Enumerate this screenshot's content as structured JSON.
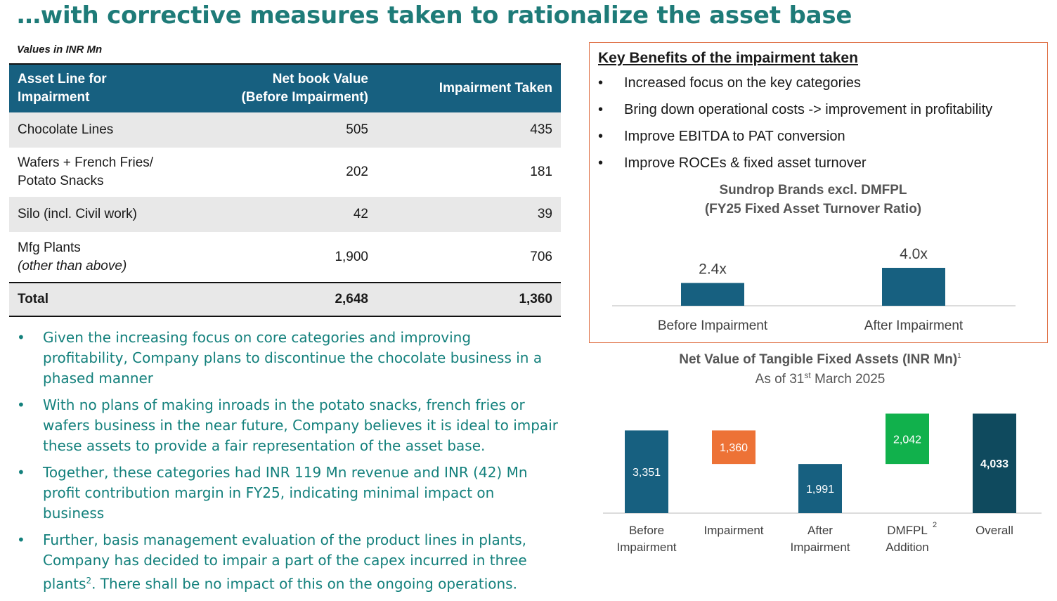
{
  "title": "…with corrective measures taken to rationalize the asset base",
  "units_note": "Values in INR Mn",
  "table": {
    "headers": {
      "col1_line1": "Asset Line for",
      "col1_line2": "Impairment",
      "col2_line1": "Net book Value",
      "col2_line2": "(Before Impairment)",
      "col3": "Impairment Taken"
    },
    "rows": [
      {
        "label1": "Chocolate Lines",
        "label2": "",
        "nbv": "505",
        "impairment": "435"
      },
      {
        "label1": "Wafers + French Fries/",
        "label2": "Potato Snacks",
        "nbv": "202",
        "impairment": "181"
      },
      {
        "label1": "Silo (incl. Civil work)",
        "label2": "",
        "nbv": "42",
        "impairment": "39"
      },
      {
        "label1": "Mfg Plants",
        "label2": "(other than above)",
        "nbv": "1,900",
        "impairment": "706"
      }
    ],
    "total": {
      "label": "Total",
      "nbv": "2,648",
      "impairment": "1,360"
    }
  },
  "notes": [
    "Given the increasing focus on core categories and improving profitability, Company plans to discontinue the chocolate business in a phased manner",
    "With no plans of making inroads in the potato snacks, french fries or wafers business in the near future, Company believes it is ideal to impair these assets to provide a fair representation of the asset base.",
    "Together, these categories had INR 119 Mn revenue and INR (42) Mn profit contribution margin in FY25, indicating minimal impact on business",
    "Further, basis management evaluation of the product lines in plants, Company has decided to impair a part of the capex incurred in three plants"
  ],
  "note4_sup": "2",
  "note4_tail": ". There shall be no impact of this on the ongoing operations.",
  "bullet": "•",
  "benefits": {
    "title": "Key Benefits of the impairment taken",
    "items": [
      "Increased focus on the key categories",
      "Bring down operational costs -> improvement in profitability",
      "Improve EBITDA to PAT conversion",
      "Improve ROCEs & fixed asset turnover"
    ]
  },
  "chart_data": [
    {
      "type": "bar",
      "title": "Sundrop Brands excl. DMFPL",
      "subtitle": "(FY25 Fixed Asset Turnover Ratio)",
      "categories": [
        "Before Impairment",
        "After Impairment"
      ],
      "values": [
        2.4,
        4.0
      ],
      "labels": [
        "2.4x",
        "4.0x"
      ],
      "ylim": [
        0,
        4.0
      ],
      "color": "#176080"
    },
    {
      "type": "bar",
      "subtype": "waterfall",
      "title": "Net Value of Tangible Fixed Assets (INR Mn)",
      "title_sup": "1",
      "subtitle_pre": "As of 31",
      "subtitle_sup": "st",
      "subtitle_post": " March 2025",
      "categories": [
        {
          "line1": "Before",
          "line2": "Impairment",
          "sup": ""
        },
        {
          "line1": "Impairment",
          "line2": "",
          "sup": ""
        },
        {
          "line1": "After",
          "line2": "Impairment",
          "sup": ""
        },
        {
          "line1": "DMFPL",
          "line2": "Addition",
          "sup": "2"
        },
        {
          "line1": "Overall",
          "line2": "",
          "sup": ""
        }
      ],
      "steps": [
        {
          "kind": "total",
          "value": 3351,
          "label": "3,351",
          "color": "#176080",
          "text_color": "#ffffff",
          "bold": false
        },
        {
          "kind": "delta",
          "value": -1360,
          "label": "1,360",
          "color": "#ed7236",
          "text_color": "#ffffff",
          "bold": false
        },
        {
          "kind": "total",
          "value": 1991,
          "label": "1,991",
          "color": "#176080",
          "text_color": "#ffffff",
          "bold": false
        },
        {
          "kind": "delta",
          "value": 2042,
          "label": "2,042",
          "color": "#11b14c",
          "text_color": "#ffffff",
          "bold": false
        },
        {
          "kind": "total",
          "value": 4033,
          "label": "4,033",
          "color": "#0f4a5e",
          "text_color": "#ffffff",
          "bold": true
        }
      ],
      "ylim": [
        0,
        4100
      ]
    }
  ]
}
